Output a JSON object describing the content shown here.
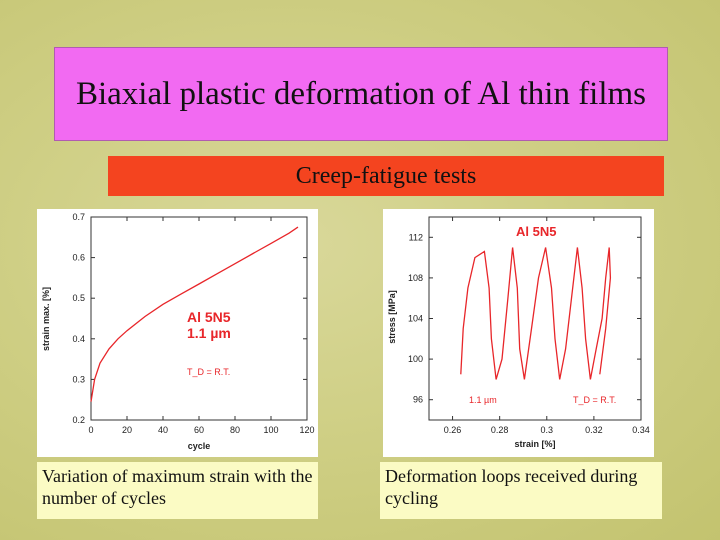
{
  "title": "Biaxial plastic deformation of Al thin films",
  "subtitle": "Creep-fatigue tests",
  "captions": {
    "left": "Variation of maximum strain with the number of cycles",
    "right": "Deformation loops received during cycling"
  },
  "colors": {
    "title_bg": "#f26af2",
    "subtitle_bg": "#f4441f",
    "caption_bg": "#fbfbc4",
    "curve": "#e8262a"
  },
  "chart_data": [
    {
      "type": "line",
      "xlabel": "cycle",
      "ylabel": "strain max. [%]",
      "xlim": [
        0,
        120
      ],
      "ylim": [
        0.2,
        0.7
      ],
      "xticks": [
        "0",
        "20",
        "40",
        "60",
        "80",
        "100",
        "120"
      ],
      "yticks": [
        "0.2",
        "0.3",
        "0.4",
        "0.5",
        "0.6",
        "0.7"
      ],
      "annotations": [
        "Al 5N5",
        "1.1 µm",
        "T_D = R.T."
      ],
      "series": [
        {
          "x": [
            0,
            2,
            5,
            10,
            15,
            20,
            30,
            40,
            50,
            60,
            70,
            80,
            90,
            100,
            110,
            115
          ],
          "y": [
            0.245,
            0.3,
            0.34,
            0.375,
            0.4,
            0.42,
            0.455,
            0.485,
            0.51,
            0.535,
            0.56,
            0.585,
            0.61,
            0.635,
            0.66,
            0.675
          ]
        }
      ]
    },
    {
      "type": "line",
      "xlabel": "strain [%]",
      "ylabel": "stress [MPa]",
      "xlim": [
        0.25,
        0.34
      ],
      "ylim": [
        94,
        114
      ],
      "xticks": [
        "0.26",
        "0.28",
        "0.3",
        "0.32",
        "0.34"
      ],
      "yticks": [
        "96",
        "100",
        "104",
        "108",
        "112"
      ],
      "annotations": [
        "Al 5N5",
        "1.1 µm",
        "T_D = R.T."
      ],
      "series": [
        {
          "x": [
            0.2635,
            0.2645,
            0.2665,
            0.2695,
            0.2735,
            0.2755,
            0.2765,
            0.2785,
            0.281,
            0.2835,
            0.2855,
            0.2875,
            0.2885,
            0.2905,
            0.2935,
            0.2965,
            0.2995,
            0.302,
            0.3035,
            0.3055,
            0.308,
            0.3105,
            0.313,
            0.315,
            0.3165,
            0.3185,
            0.321,
            0.3235,
            0.325,
            0.3265,
            0.327,
            0.325,
            0.3225
          ],
          "y": [
            98.5,
            103,
            107,
            110,
            110.6,
            107,
            102,
            98,
            100,
            106,
            111,
            107,
            101,
            98,
            103,
            108,
            111,
            107,
            102,
            98,
            101,
            106,
            111,
            107,
            102,
            98,
            101,
            104,
            108,
            111,
            108,
            103,
            98.5
          ]
        }
      ]
    }
  ]
}
